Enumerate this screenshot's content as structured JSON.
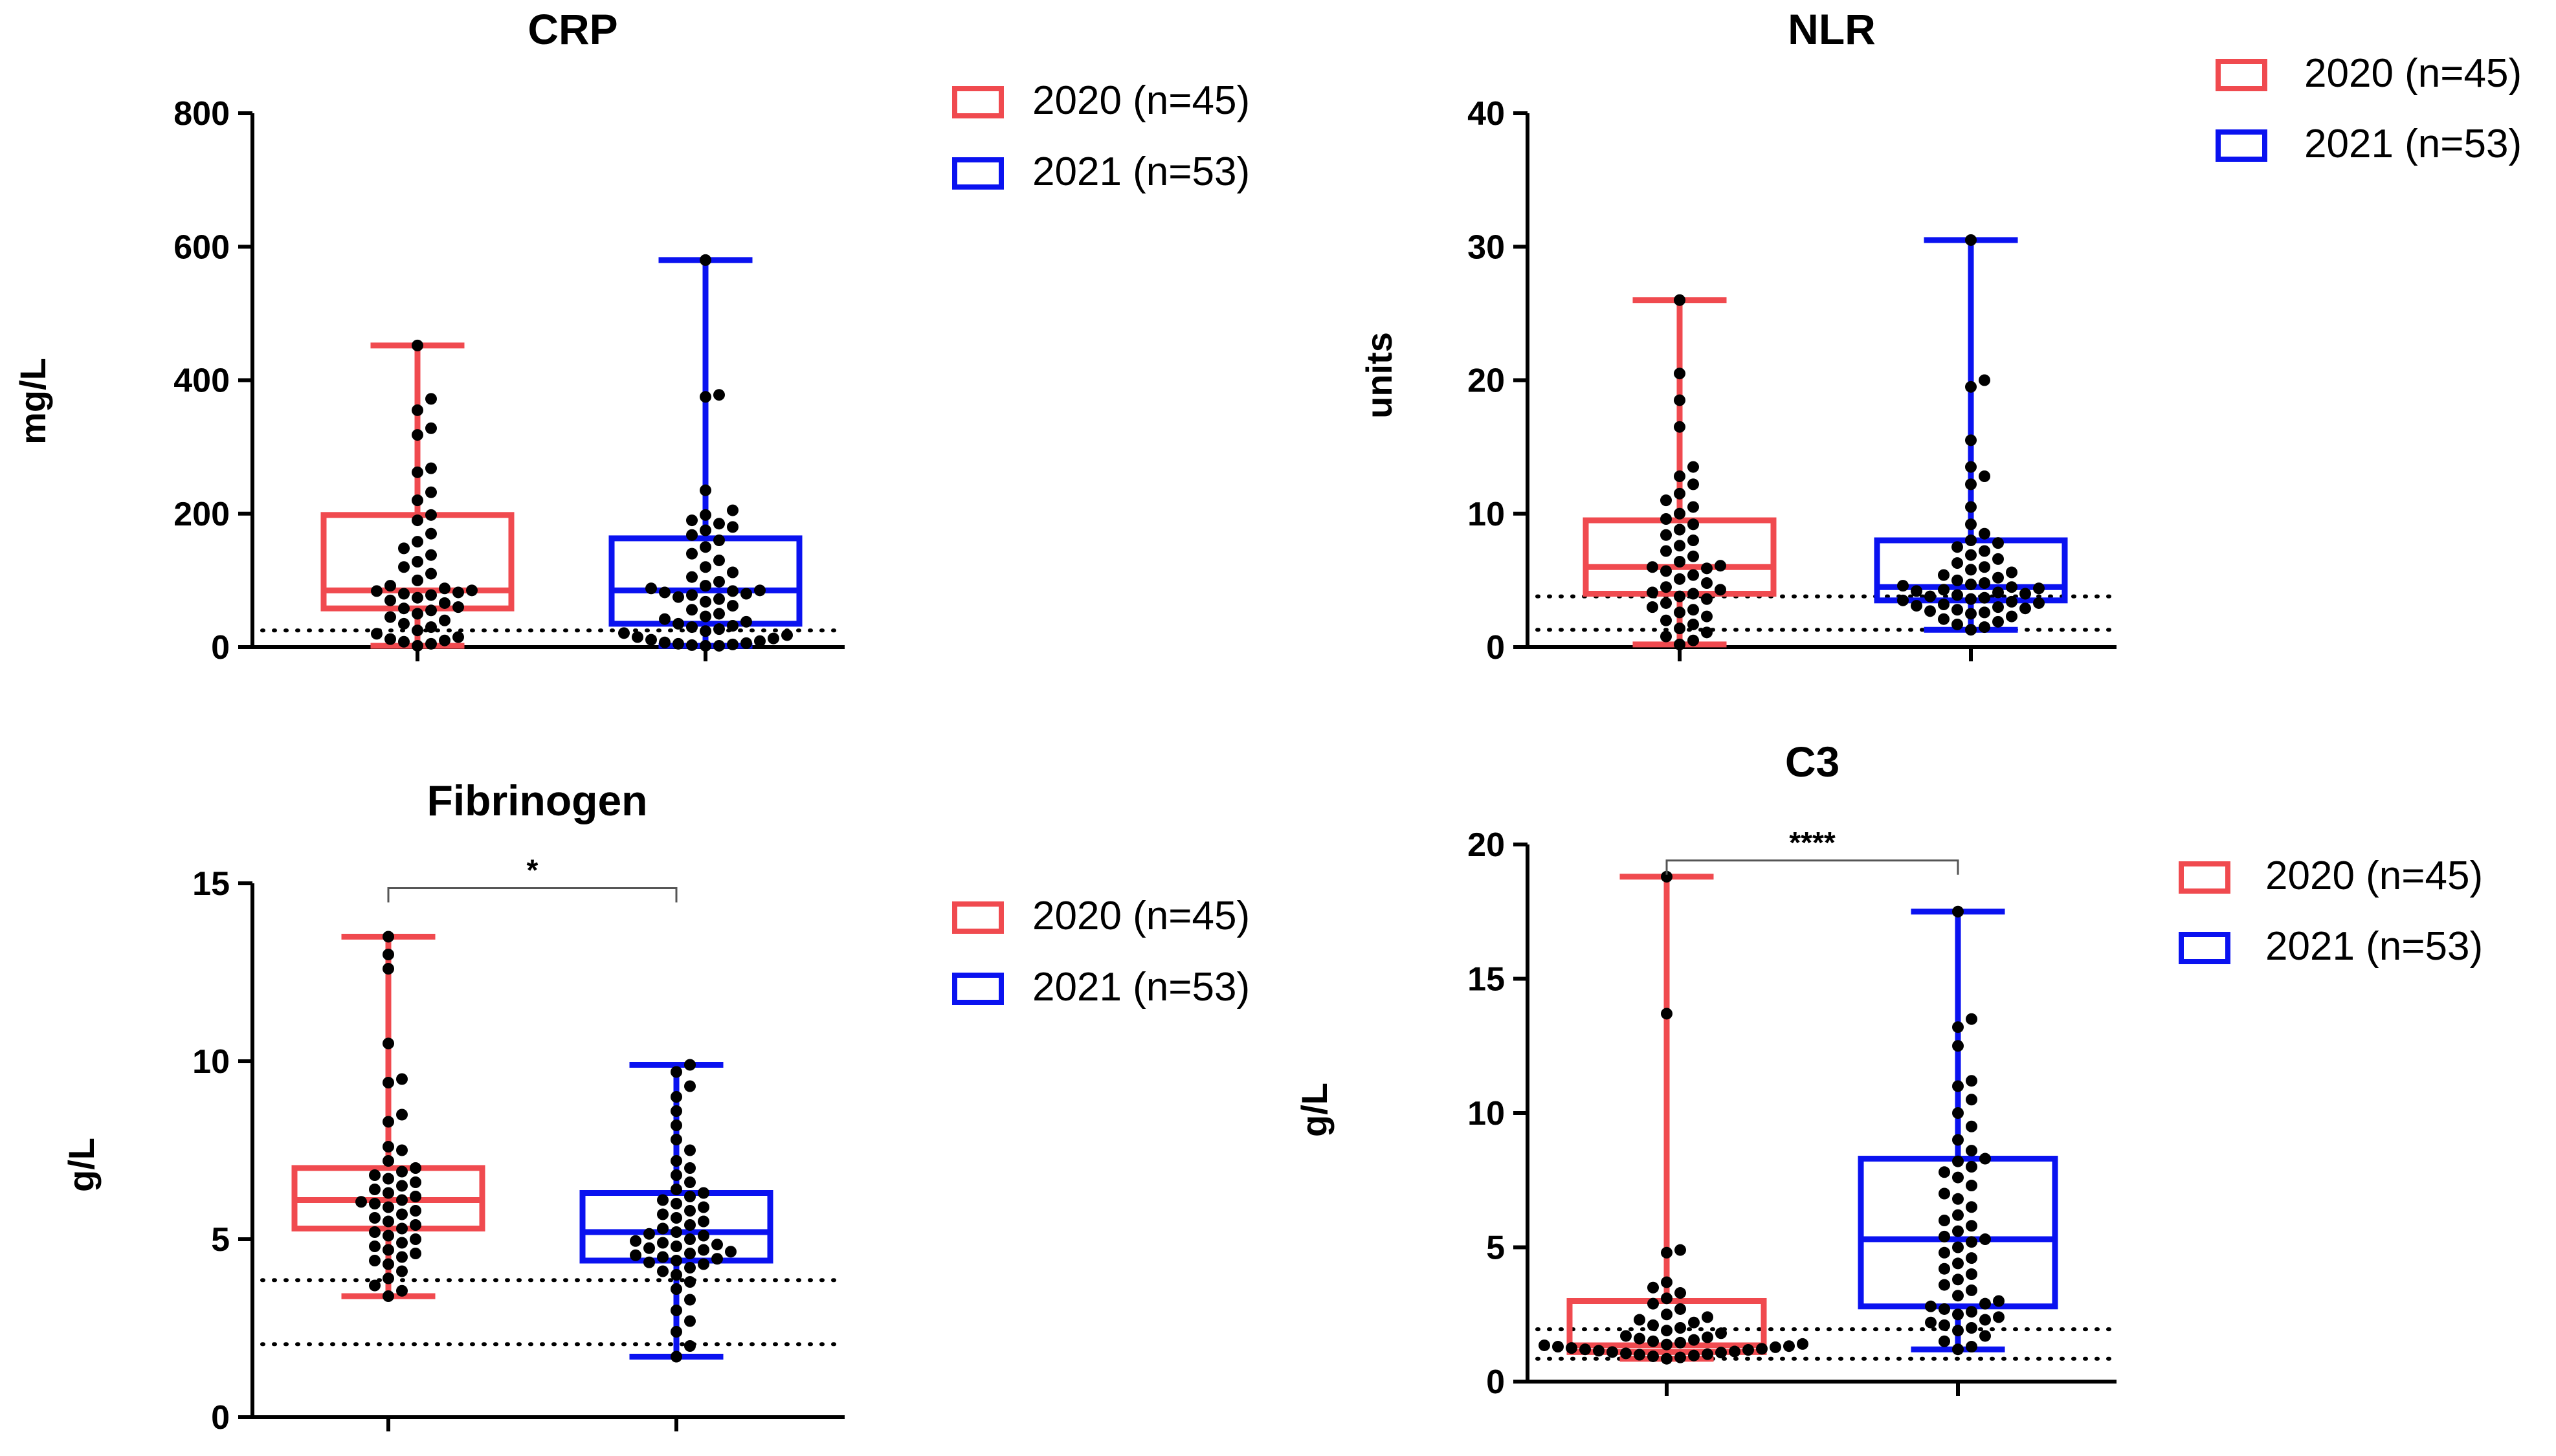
{
  "figure_title": "",
  "colors": {
    "g2020": "#f04a4f",
    "g2021": "#0a12f0",
    "axis": "#000000",
    "point": "#000000"
  },
  "chart_data": [
    {
      "type": "box",
      "title": "CRP",
      "ylabel": "mg/L",
      "ylim": [
        0,
        800
      ],
      "yticks": [
        0,
        200,
        400,
        600,
        800
      ],
      "yticklabels": [
        "0",
        "200",
        "400",
        "600",
        "800"
      ],
      "reference_lines": [
        25
      ],
      "groups": [
        {
          "name": "2020 (n=45)",
          "color_key": "g2020",
          "min": 2,
          "q1": 58,
          "median": 85,
          "q3": 198,
          "max": 452,
          "points": [
            452,
            372,
            355,
            328,
            318,
            268,
            262,
            232,
            220,
            198,
            190,
            170,
            158,
            148,
            138,
            128,
            120,
            110,
            100,
            92,
            88,
            85,
            84,
            82,
            80,
            78,
            74,
            70,
            66,
            60,
            58,
            55,
            50,
            45,
            40,
            35,
            30,
            25,
            20,
            15,
            12,
            10,
            8,
            5,
            2
          ]
        },
        {
          "name": "2021 (n=53)",
          "color_key": "g2021",
          "min": 2,
          "q1": 35,
          "median": 85,
          "q3": 163,
          "max": 580,
          "points": [
            580,
            378,
            375,
            235,
            205,
            198,
            190,
            185,
            180,
            175,
            168,
            160,
            150,
            140,
            130,
            120,
            112,
            105,
            98,
            92,
            88,
            85,
            84,
            82,
            80,
            78,
            75,
            72,
            68,
            62,
            56,
            50,
            46,
            42,
            38,
            35,
            32,
            30,
            27,
            24,
            21,
            18,
            15,
            13,
            11,
            9,
            7,
            6,
            5,
            4,
            3,
            2,
            2
          ]
        }
      ],
      "significance": null,
      "legend": [
        "2020 (n=45)",
        "2021 (n=53)"
      ]
    },
    {
      "type": "box",
      "title": "NLR",
      "ylabel": "units",
      "ylim": [
        0,
        40
      ],
      "yticks": [
        0,
        10,
        20,
        30,
        40
      ],
      "yticklabels": [
        "0",
        "10",
        "20",
        "30",
        "40"
      ],
      "reference_lines": [
        1.3,
        3.8
      ],
      "groups": [
        {
          "name": "2020 (n=45)",
          "color_key": "g2020",
          "min": 0.2,
          "q1": 4,
          "median": 6,
          "q3": 9.5,
          "max": 26,
          "points": [
            26,
            20.5,
            18.5,
            16.5,
            13.5,
            12.8,
            12.2,
            11.5,
            11,
            10.5,
            10,
            9.6,
            9.2,
            8.8,
            8.4,
            8,
            7.6,
            7.2,
            6.8,
            6.4,
            6.1,
            6,
            5.9,
            5.7,
            5.4,
            5.1,
            4.8,
            4.5,
            4.3,
            4.1,
            4,
            3.8,
            3.6,
            3.3,
            3,
            2.8,
            2.6,
            2.3,
            2,
            1.7,
            1.4,
            1.1,
            0.8,
            0.5,
            0.2
          ]
        },
        {
          "name": "2021 (n=53)",
          "color_key": "g2021",
          "min": 1.3,
          "q1": 3.5,
          "median": 4.5,
          "q3": 8,
          "max": 30.5,
          "points": [
            30.5,
            20,
            19.5,
            15.5,
            13.5,
            12.8,
            12.2,
            10.5,
            9.2,
            8.5,
            8,
            7.8,
            7.5,
            7.2,
            6.9,
            6.6,
            6.3,
            6,
            5.8,
            5.6,
            5.4,
            5.2,
            5,
            4.8,
            4.7,
            4.6,
            4.5,
            4.4,
            4.3,
            4.2,
            4.1,
            4,
            3.9,
            3.8,
            3.7,
            3.6,
            3.5,
            3.4,
            3.3,
            3.2,
            3.1,
            3,
            2.9,
            2.8,
            2.7,
            2.6,
            2.5,
            2.3,
            2.1,
            1.9,
            1.7,
            1.5,
            1.3
          ]
        }
      ],
      "significance": null,
      "legend": [
        "2020 (n=45)",
        "2021 (n=53)"
      ]
    },
    {
      "type": "box",
      "title": "Fibrinogen",
      "ylabel": "g/L",
      "ylim": [
        0,
        15
      ],
      "yticks": [
        0,
        5,
        10,
        15
      ],
      "yticklabels": [
        "0",
        "5",
        "10",
        "15"
      ],
      "reference_lines": [
        2.05,
        3.85
      ],
      "groups": [
        {
          "name": "2020 (n=45)",
          "color_key": "g2020",
          "min": 3.4,
          "q1": 5.3,
          "median": 6.1,
          "q3": 7,
          "max": 13.5,
          "points": [
            13.5,
            13,
            12.6,
            10.5,
            9.5,
            9.4,
            8.5,
            8.3,
            7.6,
            7.5,
            7.2,
            7,
            6.9,
            6.8,
            6.7,
            6.6,
            6.5,
            6.4,
            6.3,
            6.2,
            6.1,
            6.05,
            6,
            5.9,
            5.8,
            5.7,
            5.6,
            5.5,
            5.4,
            5.3,
            5.2,
            5.1,
            5,
            4.9,
            4.8,
            4.7,
            4.6,
            4.5,
            4.4,
            4.3,
            4.1,
            3.9,
            3.7,
            3.55,
            3.4
          ]
        },
        {
          "name": "2021 (n=53)",
          "color_key": "g2021",
          "min": 1.7,
          "q1": 4.4,
          "median": 5.2,
          "q3": 6.3,
          "max": 9.9,
          "points": [
            9.9,
            9.7,
            9.3,
            9,
            8.6,
            8.2,
            7.8,
            7.5,
            7.2,
            7,
            6.8,
            6.6,
            6.4,
            6.3,
            6.2,
            6.1,
            6,
            5.9,
            5.8,
            5.7,
            5.6,
            5.5,
            5.4,
            5.3,
            5.2,
            5.15,
            5.1,
            5,
            4.95,
            4.9,
            4.85,
            4.8,
            4.75,
            4.7,
            4.65,
            4.6,
            4.55,
            4.5,
            4.45,
            4.4,
            4.35,
            4.3,
            4.2,
            4.1,
            4,
            3.8,
            3.6,
            3.3,
            3,
            2.7,
            2.4,
            2,
            1.7
          ]
        }
      ],
      "significance": "*",
      "legend": [
        "2020 (n=45)",
        "2021 (n=53)"
      ]
    },
    {
      "type": "box",
      "title": "C3",
      "ylabel": "g/L",
      "ylim": [
        0,
        20
      ],
      "yticks": [
        0,
        5,
        10,
        15,
        20
      ],
      "yticklabels": [
        "0",
        "5",
        "10",
        "15",
        "20"
      ],
      "reference_lines": [
        0.85,
        1.95
      ],
      "groups": [
        {
          "name": "2020 (n=45)",
          "color_key": "g2020",
          "min": 0.85,
          "q1": 1.1,
          "median": 1.35,
          "q3": 3,
          "max": 18.8,
          "points": [
            18.8,
            13.7,
            4.9,
            4.8,
            3.7,
            3.5,
            3.3,
            3.1,
            2.9,
            2.7,
            2.5,
            2.4,
            2.3,
            2.2,
            2.1,
            2,
            1.9,
            1.8,
            1.7,
            1.65,
            1.6,
            1.55,
            1.5,
            1.45,
            1.4,
            1.38,
            1.35,
            1.32,
            1.3,
            1.28,
            1.25,
            1.22,
            1.2,
            1.18,
            1.15,
            1.12,
            1.1,
            1.08,
            1.05,
            1.02,
            1,
            0.97,
            0.94,
            0.9,
            0.85
          ]
        },
        {
          "name": "2021 (n=53)",
          "color_key": "g2021",
          "min": 1.2,
          "q1": 2.8,
          "median": 5.3,
          "q3": 8.3,
          "max": 17.5,
          "points": [
            17.5,
            13.5,
            13.2,
            12.5,
            11.2,
            11,
            10.5,
            10,
            9.5,
            9,
            8.6,
            8.3,
            8.2,
            8,
            7.8,
            7.6,
            7.3,
            7,
            6.8,
            6.5,
            6.2,
            6,
            5.8,
            5.6,
            5.4,
            5.3,
            5.2,
            5,
            4.8,
            4.6,
            4.4,
            4.2,
            4,
            3.8,
            3.6,
            3.4,
            3.2,
            3,
            2.9,
            2.8,
            2.7,
            2.6,
            2.5,
            2.4,
            2.3,
            2.2,
            2.1,
            2,
            1.9,
            1.7,
            1.5,
            1.3,
            1.2
          ]
        }
      ],
      "significance": "****",
      "legend": [
        "2020 (n=45)",
        "2021 (n=53)"
      ]
    }
  ]
}
